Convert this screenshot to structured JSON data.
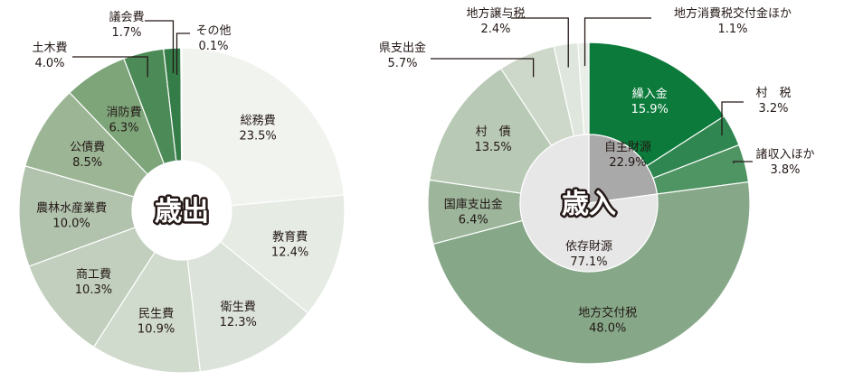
{
  "chart_data": [
    {
      "type": "pie",
      "title": "歳出",
      "slices": [
        {
          "label": "総務費",
          "value": 23.5,
          "text": "23.5%",
          "color": "#f1f3ef"
        },
        {
          "label": "教育費",
          "value": 12.4,
          "text": "12.4%",
          "color": "#e6ebe4"
        },
        {
          "label": "衛生費",
          "value": 12.3,
          "text": "12.3%",
          "color": "#dce3da"
        },
        {
          "label": "民生費",
          "value": 10.9,
          "text": "10.9%",
          "color": "#d0dacd"
        },
        {
          "label": "商工費",
          "value": 10.3,
          "text": "10.3%",
          "color": "#c2cfbe"
        },
        {
          "label": "農林水産業費",
          "value": 10.0,
          "text": "10.0%",
          "color": "#b1c2ad"
        },
        {
          "label": "公債費",
          "value": 8.5,
          "text": "8.5%",
          "color": "#9bb595"
        },
        {
          "label": "消防費",
          "value": 6.3,
          "text": "6.3%",
          "color": "#7ea57a"
        },
        {
          "label": "土木費",
          "value": 4.0,
          "text": "4.0%",
          "color": "#4c8a57"
        },
        {
          "label": "議会費",
          "value": 1.7,
          "text": "1.7%",
          "color": "#357d48"
        },
        {
          "label": "その他",
          "value": 0.1,
          "text": "0.1%",
          "color": "#0d6d33"
        }
      ]
    },
    {
      "type": "pie",
      "title": "歳入",
      "slices": [
        {
          "label": "繰入金",
          "value": 15.9,
          "text": "15.9%",
          "color": "#0b7a3a"
        },
        {
          "label": "村　税",
          "value": 3.2,
          "text": "3.2%",
          "color": "#2f8650"
        },
        {
          "label": "諸収入ほか",
          "value": 3.8,
          "text": "3.8%",
          "color": "#4f9463"
        },
        {
          "label": "地方交付税",
          "value": 48.0,
          "text": "48.0%",
          "color": "#86a888"
        },
        {
          "label": "国庫支出金",
          "value": 6.4,
          "text": "6.4%",
          "color": "#9cb59b"
        },
        {
          "label": "村　債",
          "value": 13.5,
          "text": "13.5%",
          "color": "#b8c9b5"
        },
        {
          "label": "県支出金",
          "value": 5.7,
          "text": "5.7%",
          "color": "#cdd8ca"
        },
        {
          "label": "地方譲与税",
          "value": 2.4,
          "text": "2.4%",
          "color": "#dfe6dd"
        },
        {
          "label": "地方消費税交付金ほか",
          "value": 1.1,
          "text": "1.1%",
          "color": "#eaeee8"
        }
      ],
      "inner_ring": [
        {
          "label": "自主財源",
          "value": 22.9,
          "text": "22.9%",
          "color": "#a9a9a9"
        },
        {
          "label": "依存財源",
          "value": 77.1,
          "text": "77.1%",
          "color": "#e7e7e7"
        }
      ]
    }
  ]
}
